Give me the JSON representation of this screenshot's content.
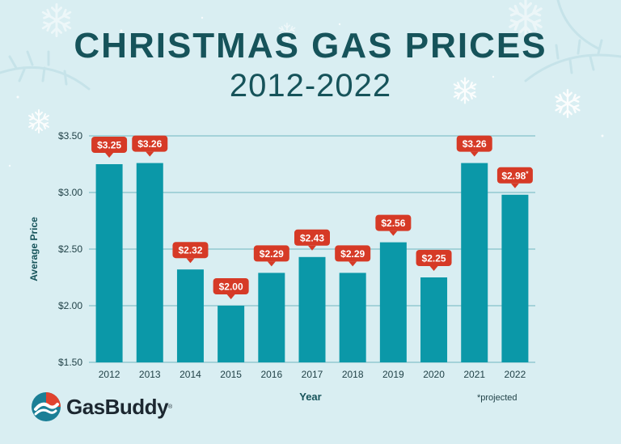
{
  "header": {
    "title": "CHRISTMAS GAS PRICES",
    "subtitle": "2012-2022"
  },
  "chart_data": {
    "type": "bar",
    "title": "CHRISTMAS GAS PRICES 2012-2022",
    "xlabel": "Year",
    "ylabel": "Average Price",
    "categories": [
      "2012",
      "2013",
      "2014",
      "2015",
      "2016",
      "2017",
      "2018",
      "2019",
      "2020",
      "2021",
      "2022"
    ],
    "values": [
      3.25,
      3.26,
      2.32,
      2.0,
      2.29,
      2.43,
      2.29,
      2.56,
      2.25,
      3.26,
      2.98
    ],
    "data_labels": [
      "$3.25",
      "$3.26",
      "$2.32",
      "$2.00",
      "$2.29",
      "$2.43",
      "$2.29",
      "$2.56",
      "$2.25",
      "$3.26",
      "$2.98*"
    ],
    "ylim": [
      1.5,
      3.5
    ],
    "yticks": [
      1.5,
      2.0,
      2.5,
      3.0,
      3.5
    ],
    "ytick_labels": [
      "$1.50",
      "$2.00",
      "$2.50",
      "$3.00",
      "$3.50"
    ],
    "grid": true,
    "bar_color": "#0b98a8",
    "label_color": "#d63a26",
    "annotation": "*projected"
  },
  "footer": {
    "brand": "GasBuddy",
    "trademark": "®",
    "footnote": "*projected"
  },
  "colors": {
    "background": "#d9eef2",
    "title": "#16535a",
    "grid": "#6fb6c0"
  }
}
